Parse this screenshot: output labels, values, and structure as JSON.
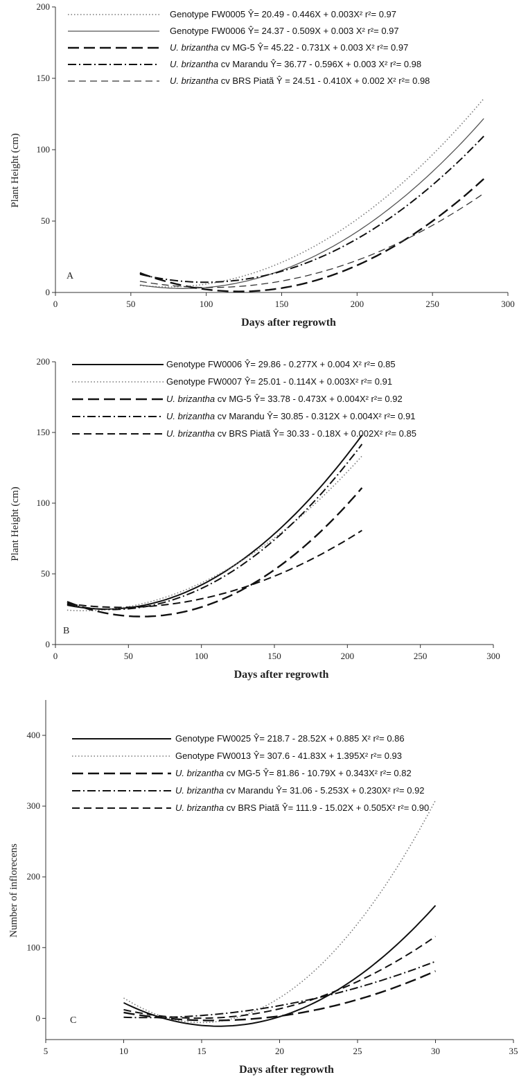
{
  "chart_data": [
    {
      "type": "line",
      "panel_label": "A",
      "xlabel": "Days after regrowth",
      "ylabel": "Plant Height (cm)",
      "xlim": [
        0,
        300
      ],
      "ylim": [
        0,
        200
      ],
      "x_ticks": [
        0,
        50,
        100,
        150,
        200,
        250,
        300
      ],
      "y_ticks": [
        0,
        50,
        100,
        150,
        200
      ],
      "x_range": [
        56,
        284
      ],
      "legend_position": "top-right",
      "series": [
        {
          "italic_name": "",
          "name": "Genotype FW0005",
          "equation": "Ŷ= 20.49 - 0.446X + 0.003X² r²= 0.97",
          "style": "dotted",
          "coef": [
            20.49,
            -0.446,
            0.003
          ]
        },
        {
          "italic_name": "",
          "name": "Genotype FW0006",
          "equation": "Ŷ= 24.37 - 0.509X + 0.003 X² r²= 0.97",
          "style": "solid-thin",
          "coef": [
            24.37,
            -0.509,
            0.003
          ]
        },
        {
          "italic_name": "U. brizantha",
          "name": "cv MG-5",
          "equation": "Ŷ= 45.22 - 0.731X + 0.003 X² r²= 0.97",
          "style": "long-dash",
          "coef": [
            45.22,
            -0.731,
            0.003
          ]
        },
        {
          "italic_name": "U. brizantha",
          "name": "cv Marandu",
          "equation": "Ŷ= 36.77 - 0.596X + 0.003 X² r²= 0.98",
          "style": "dash-dot",
          "coef": [
            36.77,
            -0.596,
            0.003
          ]
        },
        {
          "italic_name": "U. brizantha",
          "name": "cv BRS Piatã",
          "equation": "Ŷ = 24.51 - 0.410X + 0.002 X² r²= 0.98",
          "style": "thin-dash",
          "coef": [
            24.51,
            -0.41,
            0.002
          ]
        }
      ]
    },
    {
      "type": "line",
      "panel_label": "B",
      "xlabel": "Days after regrowth",
      "ylabel": "Plant Height (cm)",
      "xlim": [
        0,
        300
      ],
      "ylim": [
        0,
        200
      ],
      "x_ticks": [
        0,
        50,
        100,
        150,
        200,
        250,
        300
      ],
      "y_ticks": [
        0,
        50,
        100,
        150,
        200
      ],
      "x_range": [
        8,
        210
      ],
      "legend_position": "top-right",
      "series": [
        {
          "italic_name": "",
          "name": "Genotype FW0006",
          "equation": "Ŷ= 29.86 - 0.277X + 0.004 X² r²= 0.85",
          "style": "solid",
          "coef": [
            29.86,
            -0.277,
            0.004
          ]
        },
        {
          "italic_name": "",
          "name": "Genotype FW0007",
          "equation": "Ŷ= 25.01 - 0.114X + 0.003X² r²= 0.91",
          "style": "dotted",
          "coef": [
            25.01,
            -0.114,
            0.003
          ]
        },
        {
          "italic_name": "U. brizantha",
          "name": "cv MG-5",
          "equation": "Ŷ= 33.78 - 0.473X + 0.004X² r²= 0.92",
          "style": "long-dash",
          "coef": [
            33.78,
            -0.473,
            0.004
          ]
        },
        {
          "italic_name": "U. brizantha",
          "name": "cv Marandu",
          "equation": "Ŷ= 30.85 - 0.312X + 0.004X² r²= 0.91",
          "style": "dash-dot",
          "coef": [
            30.85,
            -0.312,
            0.004
          ]
        },
        {
          "italic_name": "U. brizantha",
          "name": "cv BRS Piatã",
          "equation": "Ŷ= 30.33 - 0.18X + 0.002X² r²= 0.85",
          "style": "medium-dash",
          "coef": [
            30.33,
            -0.18,
            0.002
          ]
        }
      ]
    },
    {
      "type": "line",
      "panel_label": "C",
      "xlabel": "Days after regrowth",
      "ylabel": "Number of inflorecens",
      "xlim": [
        5,
        35
      ],
      "ylim": [
        -30,
        450
      ],
      "x_ticks": [
        5,
        10,
        15,
        20,
        25,
        30,
        35
      ],
      "y_ticks": [
        0,
        100,
        200,
        300,
        400
      ],
      "x_range": [
        10,
        30
      ],
      "legend_position": "top-right",
      "series": [
        {
          "italic_name": "",
          "name": "Genotype FW0025",
          "equation": "Ŷ= 218.7 - 28.52X + 0.885 X² r²= 0.86",
          "style": "solid",
          "coef": [
            218.7,
            -28.52,
            0.885
          ]
        },
        {
          "italic_name": "",
          "name": "Genotype FW0013",
          "equation": "Ŷ= 307.6 - 41.83X + 1.395X² r²= 0.93",
          "style": "dotted",
          "coef": [
            307.6,
            -41.83,
            1.395
          ]
        },
        {
          "italic_name": "U. brizantha",
          "name": "cv MG-5",
          "equation": "Ŷ= 81.86 - 10.79X + 0.343X² r²= 0.82",
          "style": "long-dash",
          "coef": [
            81.86,
            -10.79,
            0.343
          ]
        },
        {
          "italic_name": "U. brizantha",
          "name": "cv Marandu",
          "equation": "Ŷ= 31.06 - 5.253X + 0.230X² r²= 0.92",
          "style": "dash-dot",
          "coef": [
            31.06,
            -5.253,
            0.23
          ]
        },
        {
          "italic_name": "U. brizantha",
          "name": "cv BRS Piatã",
          "equation": "Ŷ= 111.9 - 15.02X + 0.505X² r²= 0.90",
          "style": "medium-dash",
          "coef": [
            111.9,
            -15.02,
            0.505
          ]
        }
      ]
    }
  ],
  "colors": {
    "ink": "#111111",
    "dotted": "#777777",
    "axis": "#333333"
  }
}
